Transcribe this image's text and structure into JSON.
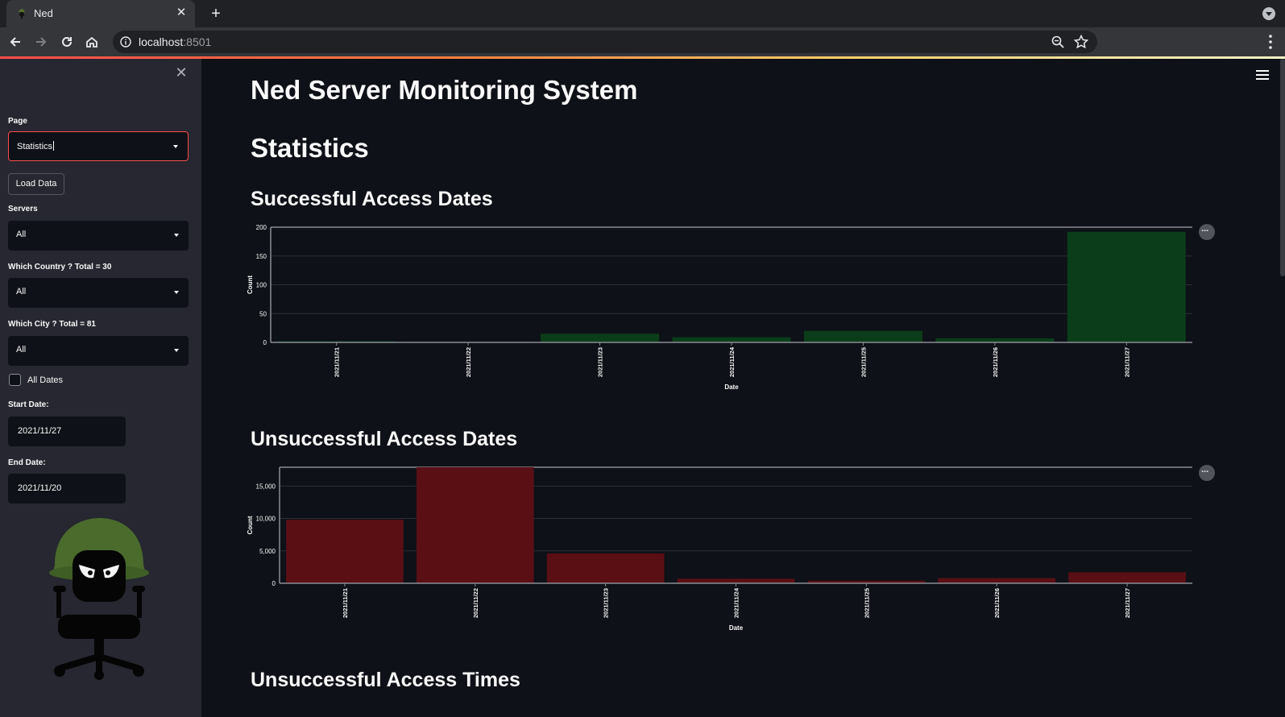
{
  "browser": {
    "tab_title": "Ned",
    "url_host": "localhost",
    "url_port": ":8501"
  },
  "sidebar": {
    "page_label": "Page",
    "page_value": "Statistics",
    "load_button": "Load Data",
    "servers_label": "Servers",
    "servers_value": "All",
    "country_label": "Which Country ? Total = 30",
    "country_value": "All",
    "city_label": "Which City ? Total = 81",
    "city_value": "All",
    "all_dates_label": "All Dates",
    "all_dates_checked": false,
    "start_label": "Start Date:",
    "start_value": "2021/11/27",
    "end_label": "End Date:",
    "end_value": "2021/11/20"
  },
  "main": {
    "title": "Ned Server Monitoring System",
    "section": "Statistics",
    "chart1_title": "Successful Access Dates",
    "chart2_title": "Unsuccessful Access Dates",
    "chart3_title": "Unsuccessful Access Times"
  },
  "colors": {
    "success_bar": "#0b3d1a",
    "fail_bar": "#5a0f15",
    "accent": "#ff4b4b"
  },
  "chart_data": [
    {
      "type": "bar",
      "title": "Successful Access Dates",
      "categories": [
        "2021/11/21",
        "2021/11/22",
        "2021/11/23",
        "2021/11/24",
        "2021/11/25",
        "2021/11/26",
        "2021/11/27"
      ],
      "values": [
        2,
        1,
        15,
        9,
        20,
        7,
        192
      ],
      "xlabel": "Date",
      "ylabel": "Count",
      "ylim": [
        0,
        200
      ],
      "yticks": [
        0,
        50,
        100,
        150,
        200
      ],
      "ytick_labels": [
        "0",
        "50",
        "100",
        "150",
        "200"
      ],
      "grid": true
    },
    {
      "type": "bar",
      "title": "Unsuccessful Access Dates",
      "categories": [
        "2021/11/21",
        "2021/11/22",
        "2021/11/23",
        "2021/11/24",
        "2021/11/25",
        "2021/11/26",
        "2021/11/27"
      ],
      "values": [
        9800,
        17900,
        4600,
        700,
        400,
        800,
        1700
      ],
      "xlabel": "Date",
      "ylabel": "Count",
      "ylim": [
        0,
        17900
      ],
      "yticks": [
        0,
        5000,
        10000,
        15000
      ],
      "ytick_labels": [
        "0",
        "5,000",
        "10,000",
        "15,000"
      ],
      "grid": true
    }
  ]
}
